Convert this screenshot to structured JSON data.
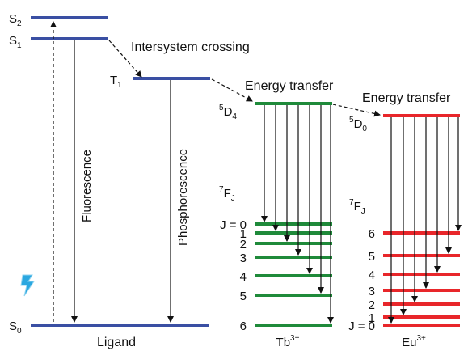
{
  "colors": {
    "ligand": "#3a4fa3",
    "tb": "#1f8a3a",
    "eu": "#e8262a",
    "arrow": "#111111",
    "lightning": "#2aa7e0"
  },
  "ligand": {
    "label": "Ligand",
    "s2": {
      "main": "S",
      "sub": "2"
    },
    "s1": {
      "main": "S",
      "sub": "1"
    },
    "s0": {
      "main": "S",
      "sub": "0"
    },
    "t1": {
      "main": "T",
      "sub": "1"
    },
    "fluorescence": "Fluorescence",
    "phosphorescence": "Phosphorescence",
    "intersystem_crossing": "Intersystem crossing"
  },
  "tb": {
    "label_main": "Tb",
    "label_sup": "3+",
    "excited": {
      "sup": "5",
      "main": "D",
      "sub": "4"
    },
    "ground_term": {
      "sup": "7",
      "main": "F",
      "sub": "J"
    },
    "energy_transfer": "Energy transfer",
    "levels": [
      "J = 0",
      "1",
      "2",
      "3",
      "4",
      "5",
      "6"
    ]
  },
  "eu": {
    "label_main": "Eu",
    "label_sup": "3+",
    "excited": {
      "sup": "5",
      "main": "D",
      "sub": "0"
    },
    "ground_term": {
      "sup": "7",
      "main": "F",
      "sub": "J"
    },
    "energy_transfer": "Energy transfer",
    "levels": [
      "6",
      "5",
      "4",
      "3",
      "2",
      "1",
      "J = 0"
    ]
  },
  "lightning_icon": "lightning-bolt-icon"
}
